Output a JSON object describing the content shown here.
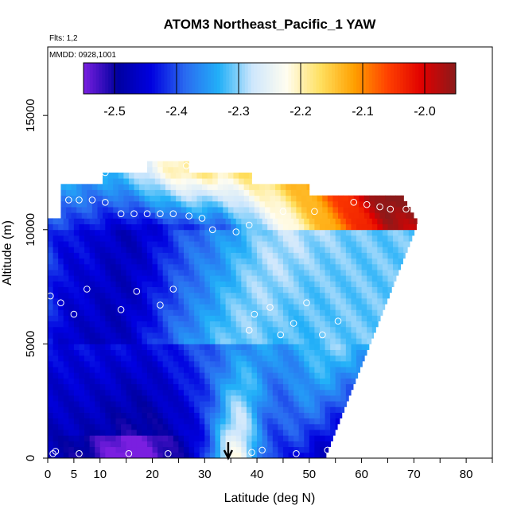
{
  "chart_data": {
    "type": "heatmap",
    "title": "ATOM3 Northeast_Pacific_1 YAW",
    "annotations": {
      "flights": "Flts: 1,2",
      "dates": "MMDD: 0928,1001"
    },
    "xlabel": "Latitude (deg N)",
    "ylabel": "Altitude (m)",
    "xlim": [
      0,
      85
    ],
    "ylim": [
      0,
      18000
    ],
    "x_ticks": [
      0,
      5,
      10,
      20,
      30,
      40,
      50,
      60,
      70,
      80
    ],
    "x_minor_ticks": [
      15,
      25,
      35,
      45,
      55,
      65,
      75,
      85
    ],
    "y_ticks": [
      0,
      5000,
      10000,
      15000
    ],
    "colorbar": {
      "range": [
        -2.55,
        -1.95
      ],
      "ticks": [
        -2.5,
        -2.4,
        -2.3,
        -2.2,
        -2.1,
        -2.0
      ],
      "tick_labels": [
        "-2.5",
        "-2.4",
        "-2.3",
        "-2.2",
        "-2.1",
        "-2.0"
      ],
      "colors": [
        "#7a1fe0",
        "#0000a0",
        "#0000e0",
        "#2a6af0",
        "#22b0f8",
        "#cfe7fc",
        "#fffdf0",
        "#ffe060",
        "#ffa000",
        "#ff4000",
        "#e00000",
        "#8b1a1a"
      ]
    },
    "arrow_latitude": 34.5,
    "observations": [
      {
        "lat": 0.5,
        "alt": 7100
      },
      {
        "lat": 1.0,
        "alt": 200
      },
      {
        "lat": 1.5,
        "alt": 300
      },
      {
        "lat": 6.0,
        "alt": 200
      },
      {
        "lat": 15.5,
        "alt": 200
      },
      {
        "lat": 23.0,
        "alt": 200
      },
      {
        "lat": 39.0,
        "alt": 250
      },
      {
        "lat": 41.0,
        "alt": 350
      },
      {
        "lat": 47.5,
        "alt": 200
      },
      {
        "lat": 53.5,
        "alt": 350
      },
      {
        "lat": 2.5,
        "alt": 6800
      },
      {
        "lat": 5.0,
        "alt": 6300
      },
      {
        "lat": 7.5,
        "alt": 7400
      },
      {
        "lat": 14.0,
        "alt": 6500
      },
      {
        "lat": 17.0,
        "alt": 7300
      },
      {
        "lat": 21.5,
        "alt": 6700
      },
      {
        "lat": 24.0,
        "alt": 7400
      },
      {
        "lat": 38.5,
        "alt": 5600
      },
      {
        "lat": 39.5,
        "alt": 6300
      },
      {
        "lat": 42.5,
        "alt": 6600
      },
      {
        "lat": 44.5,
        "alt": 5400
      },
      {
        "lat": 47.0,
        "alt": 5900
      },
      {
        "lat": 49.5,
        "alt": 6800
      },
      {
        "lat": 52.5,
        "alt": 5400
      },
      {
        "lat": 55.5,
        "alt": 6000
      },
      {
        "lat": 4.0,
        "alt": 11300
      },
      {
        "lat": 6.0,
        "alt": 11300
      },
      {
        "lat": 8.5,
        "alt": 11300
      },
      {
        "lat": 11.0,
        "alt": 11200
      },
      {
        "lat": 14.0,
        "alt": 10700
      },
      {
        "lat": 16.5,
        "alt": 10700
      },
      {
        "lat": 19.0,
        "alt": 10700
      },
      {
        "lat": 21.5,
        "alt": 10700
      },
      {
        "lat": 24.0,
        "alt": 10700
      },
      {
        "lat": 27.0,
        "alt": 10600
      },
      {
        "lat": 29.5,
        "alt": 10500
      },
      {
        "lat": 31.5,
        "alt": 10000
      },
      {
        "lat": 36.0,
        "alt": 9900
      },
      {
        "lat": 38.5,
        "alt": 10200
      },
      {
        "lat": 45.0,
        "alt": 10800
      },
      {
        "lat": 51.0,
        "alt": 10800
      },
      {
        "lat": 58.5,
        "alt": 11200
      },
      {
        "lat": 61.0,
        "alt": 11100
      },
      {
        "lat": 63.5,
        "alt": 11000
      },
      {
        "lat": 65.5,
        "alt": 10900
      },
      {
        "lat": 68.5,
        "alt": 10900
      },
      {
        "lat": 11.0,
        "alt": 12500
      },
      {
        "lat": 26.5,
        "alt": 12800
      }
    ]
  }
}
